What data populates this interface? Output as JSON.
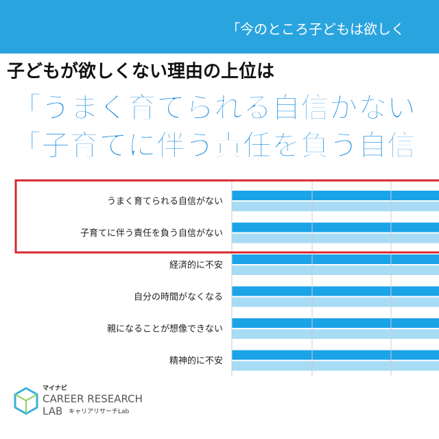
{
  "header": {
    "banner": "「今のところ子どもは欲しく"
  },
  "headline": {
    "lead": "子どもが欲しくない理由の上位は",
    "line1": "「うまく育てられる自信がない",
    "line2": "「子育てに伴う責任を負う自信"
  },
  "chart": {
    "categories": [
      "うまく育てられる自信がない",
      "子育てに伴う責任を負う自信がない",
      "経済的に不安",
      "自分の時間がなくなる",
      "親になることが想像できない",
      "精神的に不安"
    ]
  },
  "logo": {
    "brand": "マイナビ",
    "name": "CAREER RESEARCH",
    "lab": "LAB",
    "sub": "キャリアリサーチLab"
  }
}
